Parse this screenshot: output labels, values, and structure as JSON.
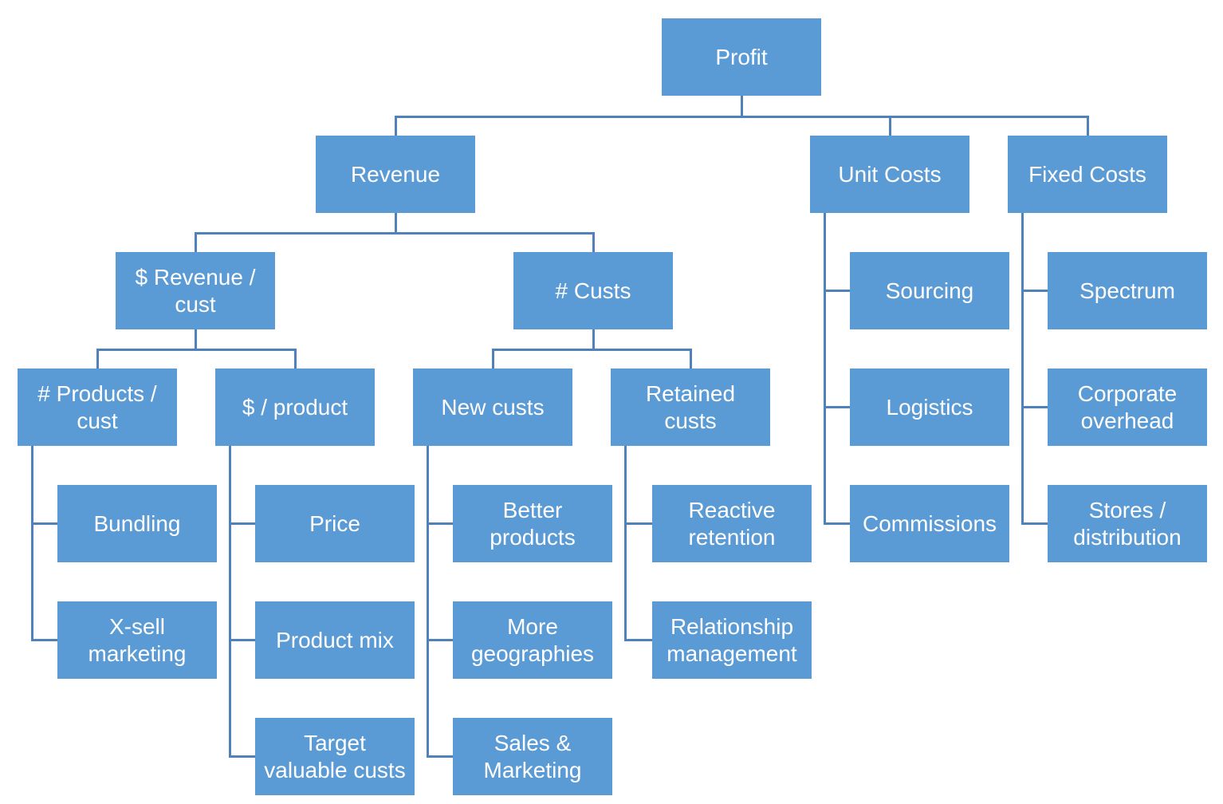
{
  "diagram": {
    "type": "tree",
    "description": "Profit driver tree"
  },
  "colors": {
    "node_fill": "#5B9BD5",
    "node_text": "#FFFFFF",
    "connector": "#4F81BD",
    "background": "#FFFFFF"
  },
  "nodes": {
    "profit": "Profit",
    "revenue": "Revenue",
    "unit_costs": "Unit Costs",
    "fixed_costs": "Fixed Costs",
    "revenue_per_cust": "$ Revenue /\ncust",
    "num_custs": "# Custs",
    "products_per_cust": "# Products /\ncust",
    "dollars_per_product": "$ / product",
    "new_custs": "New custs",
    "retained_custs": "Retained\ncusts",
    "bundling": "Bundling",
    "xsell_marketing": "X-sell\nmarketing",
    "price": "Price",
    "product_mix": "Product mix",
    "target_valuable_custs": "Target\nvaluable custs",
    "better_products": "Better\nproducts",
    "more_geographies": "More\ngeographies",
    "sales_marketing": "Sales &\nMarketing",
    "reactive_retention": "Reactive\nretention",
    "relationship_management": "Relationship\nmanagement",
    "sourcing": "Sourcing",
    "logistics": "Logistics",
    "commissions": "Commissions",
    "spectrum": "Spectrum",
    "corporate_overhead": "Corporate\noverhead",
    "stores_distribution": "Stores /\ndistribution"
  },
  "hierarchy": {
    "label": "Profit",
    "children": [
      {
        "label": "Revenue",
        "children": [
          {
            "label": "$ Revenue / cust",
            "children": [
              {
                "label": "# Products / cust",
                "children": [
                  {
                    "label": "Bundling"
                  },
                  {
                    "label": "X-sell marketing"
                  }
                ]
              },
              {
                "label": "$ / product",
                "children": [
                  {
                    "label": "Price"
                  },
                  {
                    "label": "Product mix"
                  },
                  {
                    "label": "Target valuable custs"
                  }
                ]
              }
            ]
          },
          {
            "label": "# Custs",
            "children": [
              {
                "label": "New custs",
                "children": [
                  {
                    "label": "Better products"
                  },
                  {
                    "label": "More geographies"
                  },
                  {
                    "label": "Sales & Marketing"
                  }
                ]
              },
              {
                "label": "Retained custs",
                "children": [
                  {
                    "label": "Reactive retention"
                  },
                  {
                    "label": "Relationship management"
                  }
                ]
              }
            ]
          }
        ]
      },
      {
        "label": "Unit Costs",
        "children": [
          {
            "label": "Sourcing"
          },
          {
            "label": "Logistics"
          },
          {
            "label": "Commissions"
          }
        ]
      },
      {
        "label": "Fixed Costs",
        "children": [
          {
            "label": "Spectrum"
          },
          {
            "label": "Corporate overhead"
          },
          {
            "label": "Stores / distribution"
          }
        ]
      }
    ]
  }
}
